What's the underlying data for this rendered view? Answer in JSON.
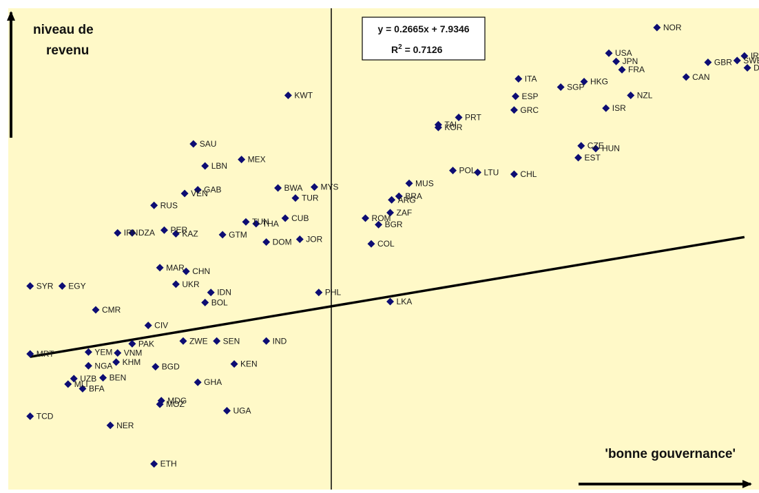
{
  "chart_data": {
    "type": "scatter",
    "title": "",
    "xlabel": "'bonne gouvernance'",
    "ylabel_line1": "niveau de",
    "ylabel_line2": "revenu",
    "equation": "y = 0.2665x + 7.9346",
    "r_squared_prefix": "R",
    "r_squared_exp": "2",
    "r_squared_value": " = 0.7126",
    "trendline": {
      "slope": 0.2665,
      "intercept": 7.9346,
      "x_start": -2.2,
      "x_end": 2.7
    },
    "xlim": [
      -2.35,
      2.8
    ],
    "ylim": [
      5.9,
      11.15
    ],
    "colors": {
      "background": "#fff9c8",
      "marker": "#0d0d73",
      "trendline": "#000000",
      "axis": "#000000"
    },
    "points": [
      {
        "label": "TCD",
        "x": -2.2,
        "y": 6.7
      },
      {
        "label": "MLI",
        "x": -1.94,
        "y": 7.05
      },
      {
        "label": "BFA",
        "x": -1.84,
        "y": 7.0
      },
      {
        "label": "UZB",
        "x": -1.9,
        "y": 7.11
      },
      {
        "label": "NGA",
        "x": -1.8,
        "y": 7.25
      },
      {
        "label": "NER",
        "x": -1.65,
        "y": 6.6
      },
      {
        "label": "BEN",
        "x": -1.7,
        "y": 7.12
      },
      {
        "label": "KHM",
        "x": -1.61,
        "y": 7.29
      },
      {
        "label": "VNM",
        "x": -1.6,
        "y": 7.39
      },
      {
        "label": "PAK",
        "x": -1.5,
        "y": 7.49
      },
      {
        "label": "CIV",
        "x": -1.39,
        "y": 7.69
      },
      {
        "label": "BGD",
        "x": -1.34,
        "y": 7.24
      },
      {
        "label": "MOZ",
        "x": -1.31,
        "y": 6.83
      },
      {
        "label": "MDG",
        "x": -1.3,
        "y": 6.87
      },
      {
        "label": "ETH",
        "x": -1.35,
        "y": 6.18
      },
      {
        "label": "MRT",
        "x": -2.2,
        "y": 7.38
      },
      {
        "label": "SYR",
        "x": -2.2,
        "y": 8.12
      },
      {
        "label": "EGY",
        "x": -1.98,
        "y": 8.12
      },
      {
        "label": "CMR",
        "x": -1.75,
        "y": 7.86
      },
      {
        "label": "YEM",
        "x": -1.8,
        "y": 7.4
      },
      {
        "label": "ZWE",
        "x": -1.15,
        "y": 7.52
      },
      {
        "label": "SEN",
        "x": -0.92,
        "y": 7.52
      },
      {
        "label": "KEN",
        "x": -0.8,
        "y": 7.27
      },
      {
        "label": "GHA",
        "x": -1.05,
        "y": 7.07
      },
      {
        "label": "UGA",
        "x": -0.85,
        "y": 6.76
      },
      {
        "label": "IND",
        "x": -0.58,
        "y": 7.52
      },
      {
        "label": "BOL",
        "x": -1.0,
        "y": 7.94
      },
      {
        "label": "IDN",
        "x": -0.96,
        "y": 8.05
      },
      {
        "label": "UKR",
        "x": -1.2,
        "y": 8.14
      },
      {
        "label": "CHN",
        "x": -1.13,
        "y": 8.28
      },
      {
        "label": "MAR",
        "x": -1.31,
        "y": 8.32
      },
      {
        "label": "IRN",
        "x": -1.6,
        "y": 8.7
      },
      {
        "label": "DZA",
        "x": -1.5,
        "y": 8.7
      },
      {
        "label": "PER",
        "x": -1.28,
        "y": 8.73
      },
      {
        "label": "KAZ",
        "x": -1.2,
        "y": 8.69
      },
      {
        "label": "RUS",
        "x": -1.35,
        "y": 9.0
      },
      {
        "label": "VEN",
        "x": -1.14,
        "y": 9.13
      },
      {
        "label": "GAB",
        "x": -1.05,
        "y": 9.17
      },
      {
        "label": "LBN",
        "x": -1.0,
        "y": 9.43
      },
      {
        "label": "SAU",
        "x": -1.08,
        "y": 9.67
      },
      {
        "label": "MEX",
        "x": -0.75,
        "y": 9.5
      },
      {
        "label": "GTM",
        "x": -0.88,
        "y": 8.68
      },
      {
        "label": "TUN",
        "x": -0.72,
        "y": 8.82
      },
      {
        "label": "THA",
        "x": -0.65,
        "y": 8.8
      },
      {
        "label": "DOM",
        "x": -0.58,
        "y": 8.6
      },
      {
        "label": "BWA",
        "x": -0.5,
        "y": 9.19
      },
      {
        "label": "TUR",
        "x": -0.38,
        "y": 9.08
      },
      {
        "label": "MYS",
        "x": -0.25,
        "y": 9.2
      },
      {
        "label": "CUB",
        "x": -0.45,
        "y": 8.86
      },
      {
        "label": "JOR",
        "x": -0.35,
        "y": 8.63
      },
      {
        "label": "PHL",
        "x": -0.22,
        "y": 8.05
      },
      {
        "label": "KWT",
        "x": -0.43,
        "y": 10.2
      },
      {
        "label": "ROM",
        "x": 0.1,
        "y": 8.86
      },
      {
        "label": "BGR",
        "x": 0.19,
        "y": 8.79
      },
      {
        "label": "COL",
        "x": 0.14,
        "y": 8.58
      },
      {
        "label": "LKA",
        "x": 0.27,
        "y": 7.95
      },
      {
        "label": "ZAF",
        "x": 0.27,
        "y": 8.92
      },
      {
        "label": "ARG",
        "x": 0.28,
        "y": 9.06
      },
      {
        "label": "BRA",
        "x": 0.33,
        "y": 9.1
      },
      {
        "label": "MUS",
        "x": 0.4,
        "y": 9.24
      },
      {
        "label": "POL",
        "x": 0.7,
        "y": 9.38
      },
      {
        "label": "LTU",
        "x": 0.87,
        "y": 9.36
      },
      {
        "label": "CHL",
        "x": 1.12,
        "y": 9.34
      },
      {
        "label": "TAI",
        "x": 0.6,
        "y": 9.88
      },
      {
        "label": "KOR",
        "x": 0.6,
        "y": 9.85
      },
      {
        "label": "PRT",
        "x": 0.74,
        "y": 9.96
      },
      {
        "label": "GRC",
        "x": 1.12,
        "y": 10.04
      },
      {
        "label": "ESP",
        "x": 1.13,
        "y": 10.19
      },
      {
        "label": "ITA",
        "x": 1.15,
        "y": 10.38
      },
      {
        "label": "SGP",
        "x": 1.44,
        "y": 10.29
      },
      {
        "label": "HKG",
        "x": 1.6,
        "y": 10.35
      },
      {
        "label": "USA",
        "x": 1.77,
        "y": 10.66
      },
      {
        "label": "JPN",
        "x": 1.82,
        "y": 10.57
      },
      {
        "label": "NOR",
        "x": 2.1,
        "y": 10.94
      },
      {
        "label": "FRA",
        "x": 1.86,
        "y": 10.48
      },
      {
        "label": "NZL",
        "x": 1.92,
        "y": 10.2
      },
      {
        "label": "ISR",
        "x": 1.75,
        "y": 10.06
      },
      {
        "label": "CZE",
        "x": 1.58,
        "y": 9.65
      },
      {
        "label": "HUN",
        "x": 1.68,
        "y": 9.62
      },
      {
        "label": "EST",
        "x": 1.56,
        "y": 9.52
      },
      {
        "label": "CAN",
        "x": 2.3,
        "y": 10.4
      },
      {
        "label": "GBR",
        "x": 2.45,
        "y": 10.56
      },
      {
        "label": "SWE",
        "x": 2.65,
        "y": 10.58
      },
      {
        "label": "IRL",
        "x": 2.7,
        "y": 10.63
      },
      {
        "label": "DEU",
        "x": 2.72,
        "y": 10.5
      }
    ]
  }
}
